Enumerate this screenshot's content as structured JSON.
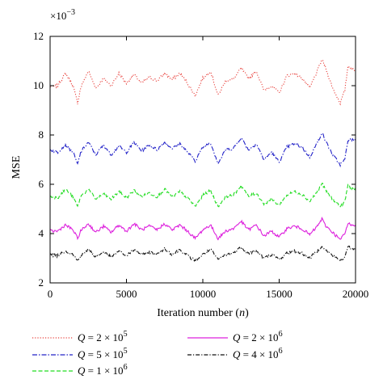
{
  "chart_data": {
    "type": "line",
    "xlabel": "Iteration number",
    "xlabel_var": "n",
    "ylabel": "MSE",
    "y_multiplier": "×10",
    "y_multiplier_exp": "−3",
    "xlim": [
      0,
      20000
    ],
    "ylim": [
      2,
      12
    ],
    "x_ticks": [
      0,
      5000,
      10000,
      15000,
      20000
    ],
    "x_tick_labels": [
      "0",
      "5000",
      "10000",
      "15000",
      "20000"
    ],
    "y_ticks": [
      2,
      4,
      6,
      8,
      10,
      12
    ],
    "y_tick_labels": [
      "2",
      "4",
      "6",
      "8",
      "10",
      "12"
    ],
    "grid": false,
    "legend_position": "bottom",
    "x": [
      0,
      500,
      1000,
      1500,
      1800,
      2000,
      2500,
      3000,
      3500,
      4000,
      4500,
      5000,
      5500,
      6000,
      6500,
      7000,
      7500,
      8000,
      8500,
      9000,
      9500,
      10000,
      10500,
      11000,
      11500,
      12000,
      12500,
      13000,
      13500,
      14000,
      14500,
      15000,
      15500,
      16000,
      16500,
      17000,
      17500,
      17800,
      18000,
      18500,
      19000,
      19300,
      19500,
      20000
    ],
    "series": [
      {
        "name": "Q = 2 × 10^5",
        "label_q": "Q",
        "label_mid": " = 2 × 10",
        "label_exp": "5",
        "color": "#e8413c",
        "dash": "1.2,2",
        "values": [
          9.95,
          10.0,
          10.5,
          10.0,
          9.3,
          9.9,
          10.6,
          9.9,
          10.3,
          10.0,
          10.5,
          10.1,
          10.45,
          10.1,
          10.35,
          10.2,
          10.5,
          10.25,
          10.5,
          10.1,
          9.6,
          10.3,
          10.6,
          9.6,
          10.2,
          10.25,
          10.7,
          10.3,
          10.6,
          9.8,
          10.0,
          9.7,
          10.4,
          10.5,
          10.3,
          9.9,
          10.6,
          11.05,
          10.8,
          9.9,
          9.3,
          9.8,
          10.8,
          10.6
        ]
      },
      {
        "name": "Q = 5 × 10^5",
        "label_q": "Q",
        "label_mid": " = 5 × 10",
        "label_exp": "5",
        "color": "#2323c8",
        "dash": "6,2,1.5,2",
        "values": [
          7.4,
          7.3,
          7.6,
          7.3,
          6.8,
          7.3,
          7.7,
          7.2,
          7.6,
          7.2,
          7.55,
          7.3,
          7.7,
          7.35,
          7.6,
          7.4,
          7.7,
          7.45,
          7.65,
          7.3,
          6.95,
          7.5,
          7.7,
          6.85,
          7.4,
          7.45,
          7.9,
          7.4,
          7.65,
          7.0,
          7.3,
          6.9,
          7.5,
          7.65,
          7.5,
          7.1,
          7.7,
          8.1,
          7.8,
          7.2,
          6.8,
          7.0,
          7.8,
          7.8
        ]
      },
      {
        "name": "Q = 1 × 10^6",
        "label_q": "Q",
        "label_mid": " = 1 × 10",
        "label_exp": "6",
        "color": "#22dd22",
        "dash": "5,2.5",
        "values": [
          5.5,
          5.45,
          5.8,
          5.5,
          5.1,
          5.5,
          5.8,
          5.4,
          5.6,
          5.4,
          5.7,
          5.45,
          5.75,
          5.5,
          5.65,
          5.5,
          5.8,
          5.5,
          5.7,
          5.45,
          5.1,
          5.55,
          5.75,
          5.1,
          5.5,
          5.55,
          5.95,
          5.5,
          5.65,
          5.2,
          5.4,
          5.15,
          5.55,
          5.7,
          5.6,
          5.3,
          5.7,
          6.05,
          5.8,
          5.4,
          5.1,
          5.3,
          5.95,
          5.75
        ]
      },
      {
        "name": "Q = 2 × 10^6",
        "label_q": "Q",
        "label_mid": " = 2 × 10",
        "label_exp": "6",
        "color": "#dd22dd",
        "dash": "",
        "values": [
          4.1,
          4.1,
          4.35,
          4.15,
          3.8,
          4.1,
          4.4,
          4.05,
          4.3,
          4.05,
          4.35,
          4.1,
          4.4,
          4.15,
          4.3,
          4.15,
          4.4,
          4.15,
          4.35,
          4.1,
          3.8,
          4.15,
          4.35,
          3.8,
          4.1,
          4.2,
          4.5,
          4.15,
          4.35,
          3.9,
          4.1,
          3.85,
          4.2,
          4.3,
          4.2,
          3.95,
          4.3,
          4.6,
          4.35,
          4.05,
          3.75,
          4.0,
          4.4,
          4.35
        ]
      },
      {
        "name": "Q = 4 × 10^6",
        "label_q": "Q",
        "label_mid": " = 4 × 10",
        "label_exp": "6",
        "color": "#111111",
        "dash": "5,2,1.2,2",
        "values": [
          3.15,
          3.1,
          3.3,
          3.15,
          2.9,
          3.1,
          3.35,
          3.05,
          3.25,
          3.05,
          3.3,
          3.1,
          3.35,
          3.15,
          3.25,
          3.15,
          3.4,
          3.15,
          3.35,
          3.1,
          2.9,
          3.15,
          3.35,
          2.95,
          3.15,
          3.2,
          3.45,
          3.2,
          3.3,
          3.0,
          3.15,
          2.95,
          3.2,
          3.3,
          3.2,
          3.0,
          3.3,
          3.5,
          3.35,
          3.1,
          2.9,
          3.05,
          3.45,
          3.35
        ]
      }
    ]
  }
}
